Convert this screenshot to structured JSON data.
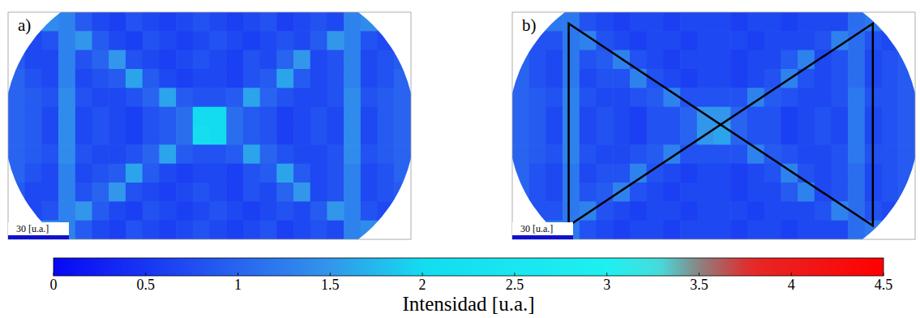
{
  "chart_data": [
    {
      "type": "heatmap",
      "label": "a)",
      "scale_bar": "30 [u.a.]",
      "cells": [
        [
          0.7,
          0.8,
          1.4,
          1.3,
          0.9,
          0.7,
          0.6,
          0.8,
          0.7,
          0.6,
          0.7,
          0.8,
          0.7,
          0.6,
          0.7,
          0.8,
          0.6,
          0.7,
          0.8,
          0.7,
          1.3,
          1.4,
          0.8,
          0.7
        ],
        [
          0.8,
          0.7,
          0.8,
          1.3,
          1.5,
          0.9,
          0.7,
          0.6,
          0.8,
          0.7,
          0.6,
          0.7,
          0.8,
          0.7,
          0.6,
          0.7,
          0.8,
          0.7,
          0.9,
          1.5,
          1.3,
          0.8,
          0.7,
          0.8
        ],
        [
          0.9,
          0.7,
          0.7,
          1.3,
          0.8,
          1.0,
          1.5,
          0.8,
          0.7,
          0.6,
          0.7,
          0.8,
          0.7,
          0.6,
          0.8,
          0.7,
          1.0,
          1.5,
          0.7,
          0.8,
          1.3,
          0.7,
          0.8,
          0.9
        ],
        [
          1.0,
          0.8,
          0.7,
          1.3,
          0.7,
          0.8,
          0.9,
          1.6,
          0.9,
          0.7,
          0.6,
          0.7,
          0.7,
          0.6,
          0.8,
          0.9,
          1.6,
          0.9,
          0.7,
          0.8,
          1.3,
          0.7,
          0.8,
          1.0
        ],
        [
          1.0,
          0.9,
          0.8,
          1.4,
          0.8,
          0.7,
          0.7,
          0.8,
          1.0,
          1.6,
          0.9,
          0.8,
          0.8,
          0.9,
          1.6,
          1.0,
          0.8,
          0.7,
          0.7,
          0.8,
          1.4,
          0.8,
          0.9,
          1.0
        ],
        [
          1.0,
          0.9,
          0.7,
          1.4,
          0.7,
          0.8,
          0.7,
          0.6,
          0.8,
          0.9,
          1.1,
          2.0,
          2.0,
          1.1,
          0.9,
          0.8,
          0.6,
          0.7,
          0.8,
          0.7,
          1.4,
          0.7,
          0.9,
          1.0
        ],
        [
          1.0,
          0.9,
          0.7,
          1.4,
          0.7,
          0.8,
          0.7,
          0.6,
          0.8,
          0.9,
          1.1,
          2.1,
          2.0,
          1.1,
          0.9,
          0.8,
          0.6,
          0.7,
          0.8,
          0.7,
          1.4,
          0.7,
          0.9,
          1.0
        ],
        [
          1.0,
          0.9,
          0.8,
          1.4,
          0.8,
          0.7,
          0.7,
          0.8,
          1.0,
          1.6,
          0.9,
          0.8,
          0.8,
          0.9,
          1.6,
          1.0,
          0.8,
          0.7,
          0.7,
          0.8,
          1.4,
          0.8,
          0.9,
          1.0
        ],
        [
          1.0,
          0.8,
          0.7,
          1.3,
          0.7,
          0.8,
          0.9,
          1.6,
          0.9,
          0.7,
          0.6,
          0.7,
          0.7,
          0.6,
          0.8,
          0.9,
          1.6,
          0.9,
          0.7,
          0.8,
          1.3,
          0.7,
          0.8,
          1.0
        ],
        [
          0.9,
          0.7,
          0.7,
          1.3,
          0.8,
          1.0,
          1.5,
          0.8,
          0.7,
          0.6,
          0.7,
          0.8,
          0.7,
          0.6,
          0.8,
          0.7,
          1.0,
          1.5,
          0.7,
          0.8,
          1.3,
          0.7,
          0.8,
          0.9
        ],
        [
          0.8,
          0.7,
          0.8,
          1.3,
          1.5,
          0.9,
          0.7,
          0.6,
          0.8,
          0.7,
          0.6,
          0.7,
          0.8,
          0.7,
          0.6,
          0.7,
          0.8,
          0.7,
          0.9,
          1.5,
          1.3,
          0.8,
          0.7,
          0.8
        ],
        [
          0.7,
          0.8,
          1.4,
          1.3,
          0.9,
          0.7,
          0.6,
          0.8,
          0.7,
          0.6,
          0.7,
          0.8,
          0.7,
          0.6,
          0.7,
          0.8,
          0.6,
          0.7,
          0.8,
          0.7,
          1.3,
          1.4,
          0.8,
          0.7
        ]
      ]
    },
    {
      "type": "heatmap",
      "label": "b)",
      "scale_bar": "30 [u.a.]",
      "cells": [
        [
          0.8,
          0.9,
          1.2,
          1.2,
          0.8,
          0.7,
          0.6,
          0.7,
          0.7,
          0.6,
          0.7,
          0.7,
          0.7,
          0.6,
          0.7,
          0.7,
          0.6,
          0.7,
          0.7,
          0.7,
          1.1,
          1.2,
          0.8,
          0.7
        ],
        [
          0.9,
          0.8,
          0.8,
          1.2,
          1.3,
          0.8,
          0.7,
          0.6,
          0.7,
          0.7,
          0.6,
          0.7,
          0.7,
          0.7,
          0.6,
          0.7,
          0.7,
          0.7,
          0.8,
          1.3,
          1.1,
          0.8,
          0.7,
          0.8
        ],
        [
          1.0,
          0.8,
          0.7,
          1.2,
          0.8,
          0.9,
          1.3,
          0.8,
          0.7,
          0.6,
          0.7,
          0.7,
          0.7,
          0.6,
          0.7,
          0.7,
          0.9,
          1.3,
          0.7,
          0.8,
          1.1,
          0.7,
          0.8,
          0.9
        ],
        [
          1.0,
          0.8,
          0.7,
          1.2,
          0.7,
          0.8,
          0.8,
          1.3,
          0.8,
          0.7,
          0.6,
          0.7,
          0.7,
          0.6,
          0.7,
          0.8,
          1.3,
          0.8,
          0.7,
          0.8,
          1.1,
          0.7,
          0.8,
          0.9
        ],
        [
          1.0,
          0.9,
          0.8,
          1.3,
          0.8,
          0.7,
          0.7,
          0.8,
          0.9,
          1.3,
          0.8,
          0.8,
          0.8,
          0.8,
          1.3,
          0.9,
          0.8,
          0.7,
          0.7,
          0.8,
          1.2,
          0.8,
          0.8,
          0.9
        ],
        [
          1.0,
          0.9,
          0.7,
          1.3,
          0.7,
          0.8,
          0.7,
          0.6,
          0.8,
          0.8,
          1.0,
          1.5,
          1.5,
          1.0,
          0.8,
          0.8,
          0.6,
          0.7,
          0.8,
          0.7,
          1.2,
          0.7,
          0.8,
          0.9
        ],
        [
          1.0,
          0.9,
          0.7,
          1.3,
          0.7,
          0.8,
          0.7,
          0.6,
          0.8,
          0.8,
          1.0,
          1.5,
          1.6,
          1.0,
          0.8,
          0.8,
          0.6,
          0.7,
          0.8,
          0.7,
          1.2,
          0.7,
          0.8,
          0.9
        ],
        [
          1.0,
          0.9,
          0.8,
          1.3,
          0.8,
          0.7,
          0.7,
          0.8,
          0.9,
          1.3,
          0.8,
          0.8,
          0.8,
          0.8,
          1.3,
          0.9,
          0.8,
          0.7,
          0.7,
          0.8,
          1.2,
          0.8,
          0.8,
          0.9
        ],
        [
          1.0,
          0.8,
          0.7,
          1.2,
          0.7,
          0.8,
          0.8,
          1.3,
          0.8,
          0.7,
          0.6,
          0.7,
          0.7,
          0.6,
          0.7,
          0.8,
          1.3,
          0.8,
          0.7,
          0.8,
          1.1,
          0.7,
          0.8,
          0.9
        ],
        [
          1.0,
          0.8,
          0.7,
          1.2,
          0.8,
          0.9,
          1.3,
          0.8,
          0.7,
          0.6,
          0.7,
          0.7,
          0.7,
          0.6,
          0.7,
          0.7,
          0.9,
          1.3,
          0.7,
          0.8,
          1.1,
          0.7,
          0.8,
          0.9
        ],
        [
          0.9,
          0.8,
          0.8,
          1.2,
          1.3,
          0.8,
          0.7,
          0.6,
          0.7,
          0.7,
          0.6,
          0.7,
          0.7,
          0.7,
          0.6,
          0.7,
          0.7,
          0.7,
          0.8,
          1.3,
          1.1,
          0.8,
          0.7,
          0.8
        ],
        [
          0.8,
          0.9,
          1.2,
          1.2,
          0.8,
          0.7,
          0.6,
          0.7,
          0.7,
          0.6,
          0.7,
          0.7,
          0.7,
          0.6,
          0.7,
          0.7,
          0.6,
          0.7,
          0.7,
          0.7,
          1.1,
          1.2,
          0.8,
          0.7
        ]
      ]
    }
  ],
  "colorbar": {
    "label": "Intensidad [u.a.]",
    "range": [
      0,
      4.5
    ],
    "ticks": [
      0,
      0.5,
      1,
      1.5,
      2,
      2.5,
      3,
      3.5,
      4,
      4.5
    ]
  }
}
